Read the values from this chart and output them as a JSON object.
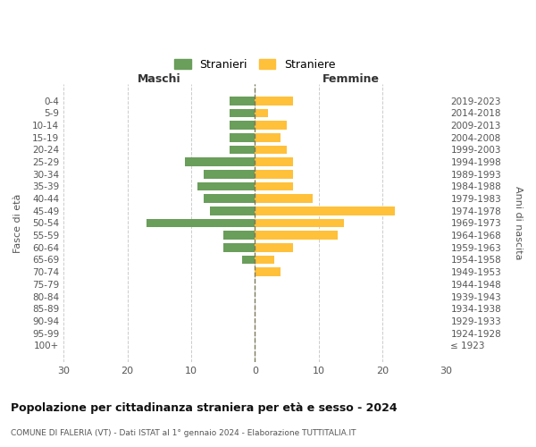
{
  "age_groups": [
    "100+",
    "95-99",
    "90-94",
    "85-89",
    "80-84",
    "75-79",
    "70-74",
    "65-69",
    "60-64",
    "55-59",
    "50-54",
    "45-49",
    "40-44",
    "35-39",
    "30-34",
    "25-29",
    "20-24",
    "15-19",
    "10-14",
    "5-9",
    "0-4"
  ],
  "birth_years": [
    "≤ 1923",
    "1924-1928",
    "1929-1933",
    "1934-1938",
    "1939-1943",
    "1944-1948",
    "1949-1953",
    "1954-1958",
    "1959-1963",
    "1964-1968",
    "1969-1973",
    "1974-1978",
    "1979-1983",
    "1984-1988",
    "1989-1993",
    "1994-1998",
    "1999-2003",
    "2004-2008",
    "2009-2013",
    "2014-2018",
    "2019-2023"
  ],
  "males": [
    0,
    0,
    0,
    0,
    0,
    0,
    0,
    2,
    5,
    5,
    17,
    7,
    8,
    9,
    8,
    11,
    4,
    4,
    4,
    4,
    4
  ],
  "females": [
    0,
    0,
    0,
    0,
    0,
    0,
    4,
    3,
    6,
    13,
    14,
    22,
    9,
    6,
    6,
    6,
    5,
    4,
    5,
    2,
    6
  ],
  "male_color": "#6a9e5b",
  "female_color": "#ffc03a",
  "center_line_color": "#7a7a5a",
  "grid_color": "#cccccc",
  "title": "Popolazione per cittadinanza straniera per età e sesso - 2024",
  "subtitle": "COMUNE DI FALERIA (VT) - Dati ISTAT al 1° gennaio 2024 - Elaborazione TUTTITALIA.IT",
  "legend_male": "Stranieri",
  "legend_female": "Straniere",
  "xlabel_left": "Maschi",
  "xlabel_right": "Femmine",
  "ylabel_left": "Fasce di età",
  "ylabel_right": "Anni di nascita",
  "xlim": 30,
  "bg_color": "#ffffff"
}
